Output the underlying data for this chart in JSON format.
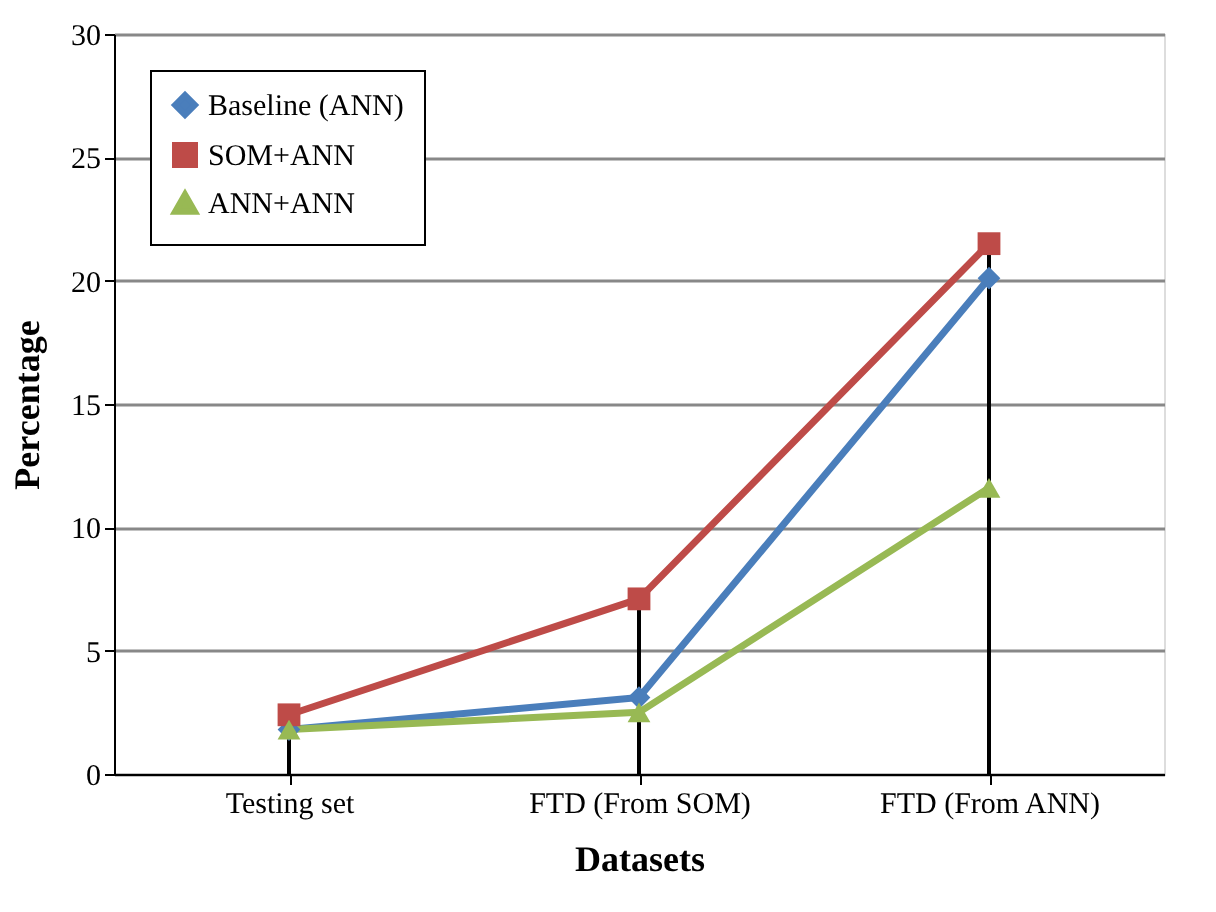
{
  "chart_data": {
    "type": "line",
    "xlabel": "Datasets",
    "ylabel": "Percentage",
    "categories": [
      "Testing set",
      "FTD (From SOM)",
      "FTD (From ANN)"
    ],
    "series": [
      {
        "name": "Baseline (ANN)",
        "color": "#4a7ebb",
        "marker": "diamond",
        "values": [
          1.8,
          3.1,
          20.1
        ]
      },
      {
        "name": "SOM+ANN",
        "color": "#be4b48",
        "marker": "square",
        "values": [
          2.4,
          7.1,
          21.5
        ],
        "errors": [
          [
            0,
            2.4
          ],
          [
            0,
            7.1
          ],
          [
            0,
            21.5
          ]
        ]
      },
      {
        "name": "ANN+ANN",
        "color": "#98b954",
        "marker": "triangle",
        "values": [
          1.8,
          2.5,
          11.6
        ]
      }
    ],
    "ylim": [
      0,
      30
    ],
    "yticks": [
      0,
      5,
      10,
      15,
      20,
      25,
      30
    ],
    "grid": "y",
    "legend": "top left",
    "line_style": "solid"
  }
}
